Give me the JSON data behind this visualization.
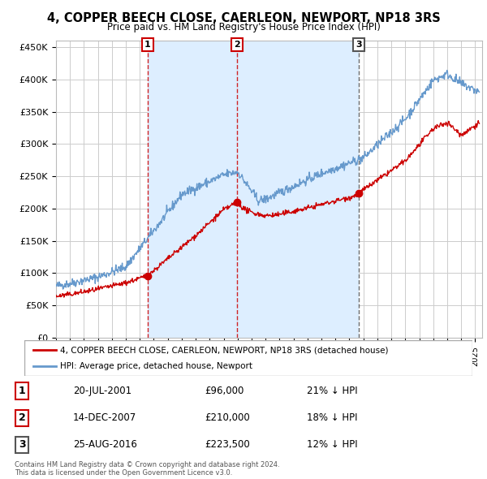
{
  "title": "4, COPPER BEECH CLOSE, CAERLEON, NEWPORT, NP18 3RS",
  "subtitle": "Price paid vs. HM Land Registry's House Price Index (HPI)",
  "ylim": [
    0,
    460000
  ],
  "yticks": [
    0,
    50000,
    100000,
    150000,
    200000,
    250000,
    300000,
    350000,
    400000,
    450000
  ],
  "xlim_start": 1995.0,
  "xlim_end": 2025.5,
  "sale_color": "#cc0000",
  "hpi_color": "#6699cc",
  "shade_color": "#ddeeff",
  "vline_colors": [
    "#cc0000",
    "#cc0000",
    "#555555"
  ],
  "grid_color": "#cccccc",
  "background_color": "#ffffff",
  "sale_label": "4, COPPER BEECH CLOSE, CAERLEON, NEWPORT, NP18 3RS (detached house)",
  "hpi_label": "HPI: Average price, detached house, Newport",
  "transactions": [
    {
      "num": 1,
      "date_label": "20-JUL-2001",
      "price_label": "£96,000",
      "hpi_label": "21% ↓ HPI",
      "year": 2001.55,
      "price": 96000
    },
    {
      "num": 2,
      "date_label": "14-DEC-2007",
      "price_label": "£210,000",
      "hpi_label": "18% ↓ HPI",
      "year": 2007.96,
      "price": 210000
    },
    {
      "num": 3,
      "date_label": "25-AUG-2016",
      "price_label": "£223,500",
      "hpi_label": "12% ↓ HPI",
      "year": 2016.65,
      "price": 223500
    }
  ],
  "copyright_text": "Contains HM Land Registry data © Crown copyright and database right 2024.\nThis data is licensed under the Open Government Licence v3.0."
}
